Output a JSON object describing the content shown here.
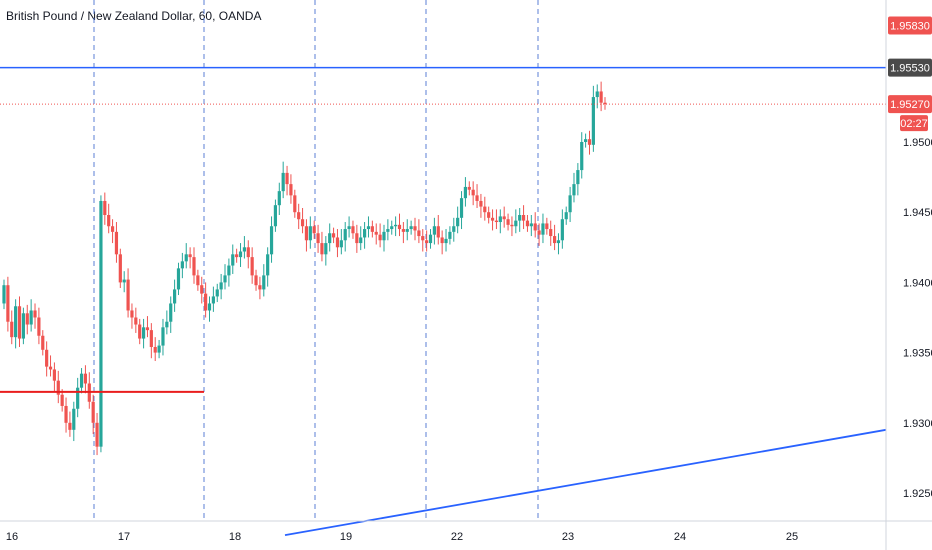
{
  "title": "British Pound / New Zealand Dollar, 60, OANDA",
  "colors": {
    "up": "#26a69a",
    "down": "#ef5350",
    "line_blue": "#2962ff",
    "support_red": "#e91e1e",
    "last_red": "#ef5350",
    "tag_dark": "#4a4a4a",
    "grid": "#e0e3eb",
    "dashed_blue": "#5b7fd6"
  },
  "chart_data": {
    "type": "candlestick",
    "title": "British Pound / New Zealand Dollar, 60, OANDA",
    "xlabel": "",
    "ylabel": "",
    "x_ticks": [
      "16",
      "17",
      "18",
      "19",
      "22",
      "23",
      "24",
      "25"
    ],
    "y_ticks": [
      "1.92500",
      "1.93000",
      "1.93500",
      "1.94000",
      "1.94500",
      "1.95000"
    ],
    "ylim": [
      1.922,
      1.96
    ],
    "grid": false,
    "price_tags": [
      {
        "value": 1.9583,
        "text": "1.95830",
        "style": "red"
      },
      {
        "value": 1.9553,
        "text": "1.95530",
        "style": "dark"
      },
      {
        "value": 1.9527,
        "text": "1.95270",
        "style": "red"
      }
    ],
    "countdown": "02:27",
    "horizontal_lines": [
      {
        "name": "resistance",
        "value": 1.9553,
        "color": "blue",
        "style": "solid"
      },
      {
        "name": "last-price",
        "value": 1.9527,
        "color": "red",
        "style": "dotted"
      }
    ],
    "segments": [
      {
        "name": "support-segment",
        "value": 1.9322,
        "from_day": "16",
        "to_day": "17 end",
        "color": "red"
      }
    ],
    "trendline": {
      "from": {
        "x": "18 mid",
        "y": 1.922
      },
      "to": {
        "x": "25 end",
        "y": 1.9295
      },
      "color": "blue"
    },
    "vertical_dashed_days": [
      "17",
      "18",
      "19",
      "22",
      "23"
    ],
    "session_closes": [
      1.9398,
      1.9372,
      1.9361,
      1.9383,
      1.936,
      1.9378,
      1.937,
      1.938,
      1.9375,
      1.9362,
      1.9352,
      1.934,
      1.9338,
      1.933,
      1.932,
      1.9312,
      1.93,
      1.9295,
      1.931,
      1.9325,
      1.9335,
      1.9328,
      1.9315,
      1.93,
      1.9283,
      1.9458,
      1.9448,
      1.944,
      1.9436,
      1.942,
      1.94,
      1.9402,
      1.938,
      1.9375,
      1.937,
      1.936,
      1.9368,
      1.9366,
      1.9354,
      1.935,
      1.9355,
      1.9368,
      1.9372,
      1.9385,
      1.9395,
      1.941,
      1.9415,
      1.942,
      1.9418,
      1.9405,
      1.9398,
      1.9392,
      1.938,
      1.9385,
      1.939,
      1.9395,
      1.94,
      1.9405,
      1.9412,
      1.942,
      1.9418,
      1.9422,
      1.9425,
      1.9418,
      1.9405,
      1.9398,
      1.9395,
      1.9405,
      1.942,
      1.944,
      1.9455,
      1.9465,
      1.9478,
      1.947,
      1.9462,
      1.945,
      1.9445,
      1.944,
      1.943,
      1.944,
      1.9435,
      1.9428,
      1.942,
      1.9428,
      1.9435,
      1.9432,
      1.9425,
      1.943,
      1.9438,
      1.944,
      1.9435,
      1.9428,
      1.9432,
      1.9438,
      1.944,
      1.9436,
      1.9434,
      1.943,
      1.9436,
      1.9438,
      1.944,
      1.9441,
      1.9438,
      1.9436,
      1.9438,
      1.944,
      1.9437,
      1.9433,
      1.943,
      1.9428,
      1.9434,
      1.944,
      1.9432,
      1.9428,
      1.9431,
      1.9436,
      1.944,
      1.9446,
      1.946,
      1.9468,
      1.9466,
      1.9462,
      1.9458,
      1.9454,
      1.945,
      1.9446,
      1.9444,
      1.9443,
      1.9447,
      1.9445,
      1.9441,
      1.944,
      1.9444,
      1.9448,
      1.9444,
      1.944,
      1.9442,
      1.9437,
      1.9434,
      1.9442,
      1.9438,
      1.9433,
      1.9428,
      1.943,
      1.9445,
      1.945,
      1.9462,
      1.947,
      1.948,
      1.95,
      1.9502,
      1.9498,
      1.9532,
      1.9536,
      1.9528,
      1.9527
    ]
  }
}
